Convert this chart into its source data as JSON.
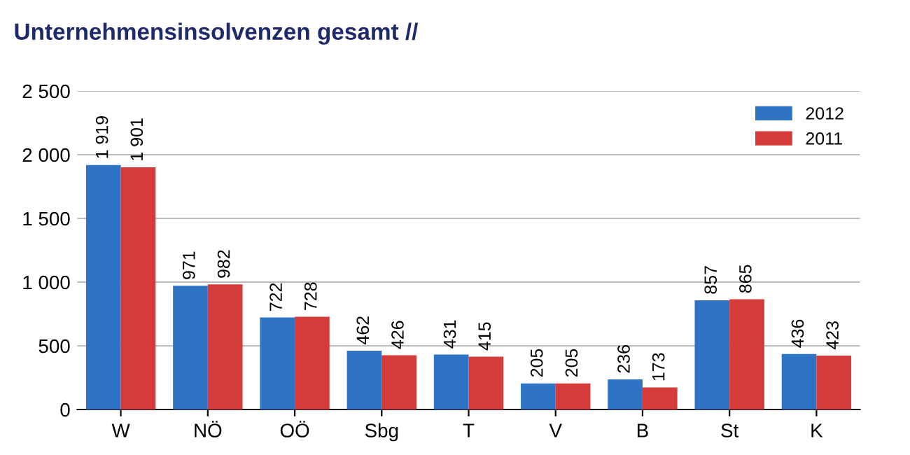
{
  "chart_data": {
    "type": "bar",
    "title": "Unternehmensinsolvenzen gesamt //",
    "categories": [
      "W",
      "NÖ",
      "OÖ",
      "Sbg",
      "T",
      "V",
      "B",
      "St",
      "K"
    ],
    "series": [
      {
        "name": "2012",
        "color": "#2f74c4",
        "values": [
          1919,
          971,
          722,
          462,
          431,
          205,
          236,
          857,
          436
        ],
        "value_labels": [
          "1 919",
          "971",
          "722",
          "462",
          "431",
          "205",
          "236",
          "857",
          "436"
        ]
      },
      {
        "name": "2011",
        "color": "#d63b3b",
        "values": [
          1901,
          982,
          728,
          426,
          415,
          205,
          173,
          865,
          423
        ],
        "value_labels": [
          "1 901",
          "982",
          "728",
          "426",
          "415",
          "205",
          "173",
          "865",
          "423"
        ]
      }
    ],
    "ylim": [
      0,
      2500
    ],
    "yticks": [
      0,
      {
        "value": 500,
        "label": "500"
      },
      {
        "value": 1000,
        "label": "1 000"
      },
      {
        "value": 1500,
        "label": "1 500"
      },
      {
        "value": 2000,
        "label": "2 000"
      },
      {
        "value": 2500,
        "label": "2 500"
      }
    ],
    "grid": "y",
    "legend": "top right"
  }
}
